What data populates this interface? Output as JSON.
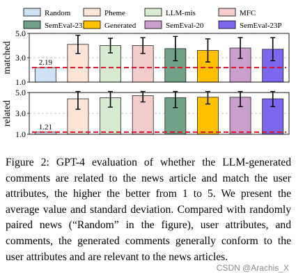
{
  "chart_data": {
    "type": "bar",
    "categories": [
      "Random",
      "Pheme",
      "LLM-mis",
      "MFC",
      "SemEval-23F",
      "Generated",
      "SemEval-20",
      "SemEval-23P"
    ],
    "colors": [
      "#cfe2f3",
      "#fbe5d6",
      "#d9ead3",
      "#f4cccc",
      "#6fa287",
      "#ffc000",
      "#c9a0cc",
      "#7b68ee"
    ],
    "legend_placement": "top",
    "ylim": [
      1.0,
      5.0
    ],
    "yticks": [
      "1.0",
      "3.0",
      "5.0"
    ],
    "ytick_values": [
      1.0,
      3.0,
      5.0
    ],
    "grid": "horizontal-dashed",
    "panels": [
      {
        "ylabel": "matched",
        "values": [
          2.19,
          4.1,
          4.0,
          4.0,
          3.75,
          3.6,
          3.8,
          3.7
        ],
        "errors": [
          0,
          0.75,
          0.6,
          0.65,
          1.0,
          0.95,
          0.85,
          0.95
        ],
        "reference_line": 2.19,
        "reference_label": "2.19"
      },
      {
        "ylabel": "related",
        "values": [
          1.21,
          4.4,
          4.5,
          4.7,
          4.5,
          4.55,
          4.55,
          4.4
        ],
        "errors": [
          0,
          1.0,
          0.9,
          0.6,
          0.95,
          0.65,
          0.9,
          0.75
        ],
        "reference_line": 1.21,
        "reference_label": "1.21"
      }
    ]
  },
  "caption": {
    "text": "Figure 2: GPT-4 evaluation of whether the LLM-generated comments are related to the news article and match the user attributes, the higher the better from 1 to 5. We present the average value and standard deviation. Compared with randomly paired news (“Random” in the figure), user attributes, and comments, the generated comments generally conform to the user attributes and are relevant to the news articles."
  },
  "watermark": "CSDN @Arachis_X"
}
